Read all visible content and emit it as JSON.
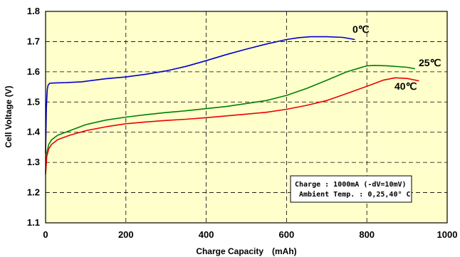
{
  "chart_data": {
    "type": "line",
    "xlabel": "Charge Capacity　(mAh)",
    "ylabel": "Cell Voltage (V)",
    "xlim": [
      0,
      1000
    ],
    "ylim": [
      1.1,
      1.8
    ],
    "x_ticks": [
      "0",
      "200",
      "400",
      "600",
      "800",
      "1000"
    ],
    "y_ticks": [
      "1.1",
      "1.2",
      "1.3",
      "1.4",
      "1.5",
      "1.6",
      "1.7",
      "1.8"
    ],
    "grid": true,
    "background_color": "#ffffcc",
    "series": [
      {
        "name": "0℃",
        "color": "#0000cc",
        "x": [
          0,
          2,
          4,
          6,
          10,
          20,
          50,
          90,
          150,
          200,
          250,
          300,
          350,
          400,
          450,
          500,
          550,
          600,
          630,
          660,
          700,
          740,
          770
        ],
        "y": [
          1.33,
          1.48,
          1.54,
          1.555,
          1.562,
          1.563,
          1.564,
          1.567,
          1.577,
          1.583,
          1.592,
          1.603,
          1.618,
          1.637,
          1.657,
          1.675,
          1.692,
          1.707,
          1.713,
          1.716,
          1.716,
          1.714,
          1.707
        ]
      },
      {
        "name": "25℃",
        "color": "#008000",
        "x": [
          0,
          3,
          8,
          15,
          30,
          60,
          100,
          150,
          200,
          250,
          300,
          350,
          400,
          450,
          500,
          550,
          600,
          650,
          700,
          750,
          800,
          820,
          850,
          900,
          920
        ],
        "y": [
          1.27,
          1.33,
          1.36,
          1.375,
          1.39,
          1.405,
          1.425,
          1.44,
          1.45,
          1.458,
          1.465,
          1.471,
          1.478,
          1.485,
          1.495,
          1.505,
          1.522,
          1.545,
          1.572,
          1.6,
          1.62,
          1.621,
          1.62,
          1.615,
          1.61
        ]
      },
      {
        "name": "40℃",
        "color": "#ee0000",
        "x": [
          0,
          3,
          8,
          15,
          30,
          60,
          100,
          150,
          200,
          250,
          300,
          350,
          400,
          450,
          500,
          550,
          600,
          650,
          700,
          750,
          800,
          840,
          870,
          900,
          930
        ],
        "y": [
          1.26,
          1.32,
          1.345,
          1.36,
          1.375,
          1.39,
          1.405,
          1.418,
          1.428,
          1.434,
          1.439,
          1.443,
          1.448,
          1.454,
          1.46,
          1.466,
          1.476,
          1.489,
          1.505,
          1.528,
          1.552,
          1.572,
          1.58,
          1.578,
          1.57
        ]
      }
    ],
    "annotation_lines": [
      "Charge : 1000mA (-dV=10mV)",
      "Ambient Temp. : 0,25,40° C"
    ]
  }
}
